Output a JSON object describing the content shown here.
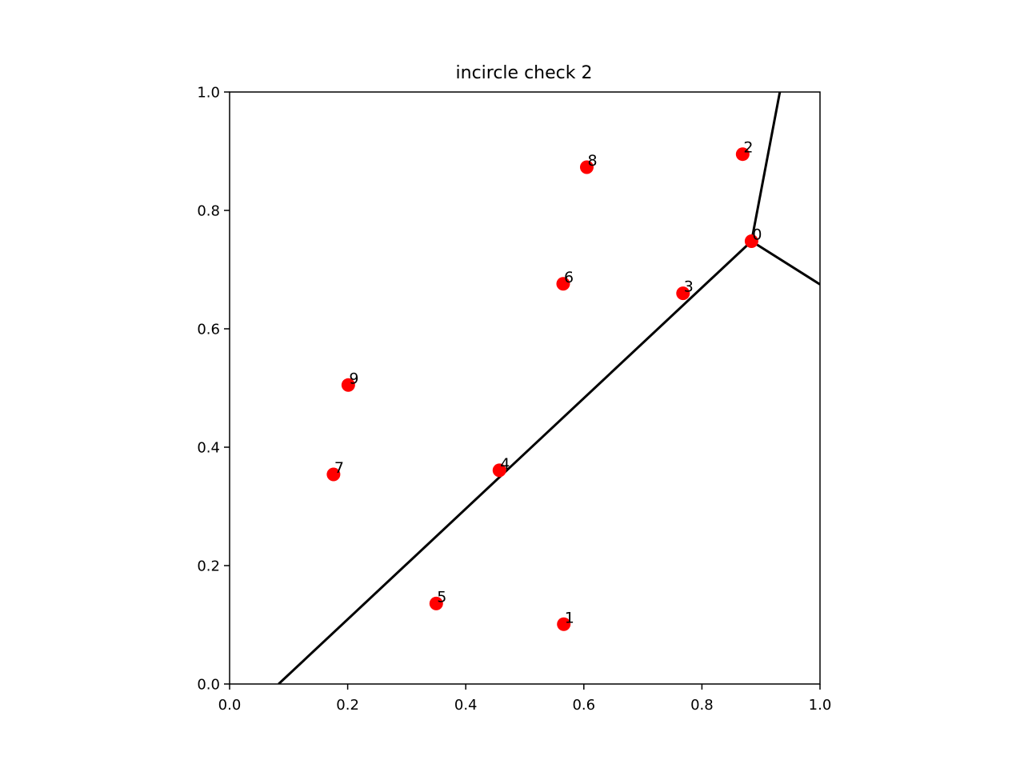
{
  "chart_data": {
    "type": "scatter",
    "title": "incircle check 2",
    "xlabel": "",
    "ylabel": "",
    "xlim": [
      0.0,
      1.0
    ],
    "ylim": [
      0.0,
      1.0
    ],
    "x_ticks": [
      "0.0",
      "0.2",
      "0.4",
      "0.6",
      "0.8",
      "1.0"
    ],
    "y_ticks": [
      "0.0",
      "0.2",
      "0.4",
      "0.6",
      "0.8",
      "1.0"
    ],
    "grid": false,
    "point_color": "#ff0000",
    "line_color": "#000000",
    "points": [
      {
        "label": "0",
        "x": 0.884,
        "y": 0.748
      },
      {
        "label": "1",
        "x": 0.566,
        "y": 0.101
      },
      {
        "label": "2",
        "x": 0.869,
        "y": 0.895
      },
      {
        "label": "3",
        "x": 0.768,
        "y": 0.66
      },
      {
        "label": "4",
        "x": 0.457,
        "y": 0.361
      },
      {
        "label": "5",
        "x": 0.35,
        "y": 0.136
      },
      {
        "label": "6",
        "x": 0.565,
        "y": 0.676
      },
      {
        "label": "7",
        "x": 0.176,
        "y": 0.354
      },
      {
        "label": "8",
        "x": 0.605,
        "y": 0.873
      },
      {
        "label": "9",
        "x": 0.201,
        "y": 0.505
      }
    ],
    "lines": [
      {
        "x": [
          0.083,
          0.884
        ],
        "y": [
          0.0,
          0.748
        ]
      },
      {
        "x": [
          0.884,
          0.932
        ],
        "y": [
          0.748,
          1.0
        ]
      },
      {
        "x": [
          0.884,
          1.0
        ],
        "y": [
          0.748,
          0.675
        ]
      }
    ]
  }
}
